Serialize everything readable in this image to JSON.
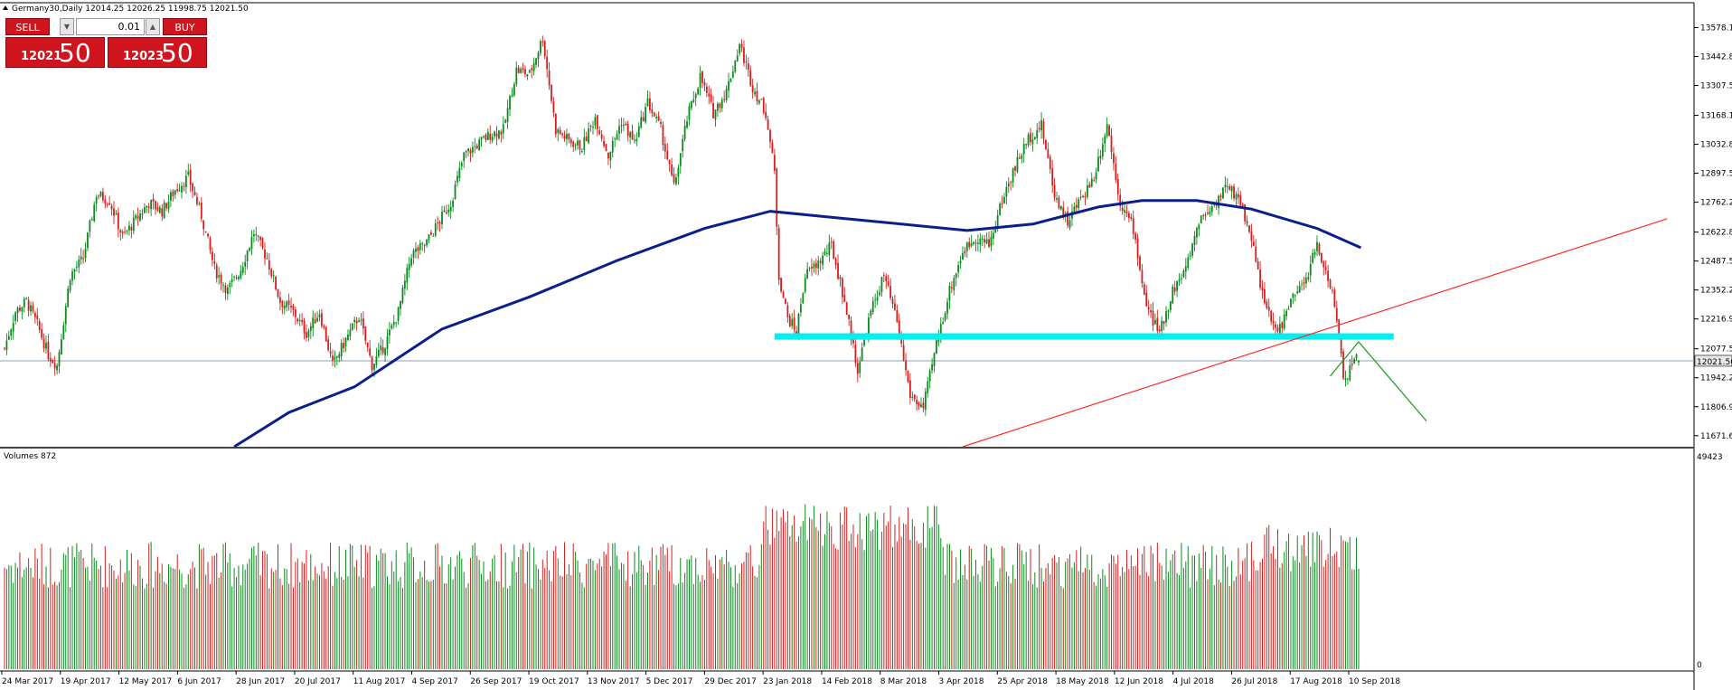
{
  "window": {
    "symbol_line": "Germany30,Daily  12014.25 12026.25 11998.75 12021.50",
    "current_price_label": "12021.50"
  },
  "trade_panel": {
    "sell_label": "SELL",
    "buy_label": "BUY",
    "lot_value": "0.01",
    "spin_down": "▼",
    "spin_up": "▲",
    "bid_small": "12021",
    "bid_big": "50",
    "ask_small": "12023",
    "ask_big": "50"
  },
  "colors": {
    "bull": "#0b8a1e",
    "bear": "#d41f1f",
    "moving_average": "#0c1e8c",
    "support_zone": "#00f0f0",
    "trend_line": "#ff2a2a",
    "projection": "#1a9a1a",
    "axis": "#000000"
  },
  "chart_data": {
    "type": "candlestick",
    "instrument": "Germany30",
    "timeframe": "Daily",
    "ohlc_last": {
      "open": 12014.25,
      "high": 12026.25,
      "low": 11998.75,
      "close": 12021.5
    },
    "price_axis_ticks": [
      "13578.10",
      "13442.80",
      "13307.50",
      "13168.10",
      "13032.80",
      "12897.50",
      "12762.20",
      "12622.80",
      "12487.50",
      "12352.20",
      "12216.90",
      "12077.50",
      "11942.20",
      "11806.90",
      "11671.60"
    ],
    "date_axis_ticks": [
      "24 Mar 2017",
      "19 Apr 2017",
      "12 May 2017",
      "6 Jun 2017",
      "28 Jun 2017",
      "20 Jul 2017",
      "11 Aug 2017",
      "4 Sep 2017",
      "26 Sep 2017",
      "19 Oct 2017",
      "13 Nov 2017",
      "5 Dec 2017",
      "29 Dec 2017",
      "23 Jan 2018",
      "14 Feb 2018",
      "8 Mar 2018",
      "3 Apr 2018",
      "25 Apr 2018",
      "18 May 2018",
      "12 Jun 2018",
      "4 Jul 2018",
      "26 Jul 2018",
      "17 Aug 2018",
      "10 Sep 2018"
    ],
    "price_ylim": [
      11620,
      13690
    ],
    "price_path": [
      [
        0,
        12080
      ],
      [
        5,
        12250
      ],
      [
        10,
        12300
      ],
      [
        15,
        12190
      ],
      [
        20,
        12050
      ],
      [
        24,
        12000
      ],
      [
        30,
        12420
      ],
      [
        36,
        12500
      ],
      [
        42,
        12800
      ],
      [
        48,
        12770
      ],
      [
        54,
        12600
      ],
      [
        60,
        12680
      ],
      [
        66,
        12760
      ],
      [
        72,
        12720
      ],
      [
        78,
        12820
      ],
      [
        84,
        12880
      ],
      [
        90,
        12700
      ],
      [
        96,
        12450
      ],
      [
        102,
        12350
      ],
      [
        108,
        12450
      ],
      [
        114,
        12620
      ],
      [
        120,
        12500
      ],
      [
        126,
        12300
      ],
      [
        132,
        12250
      ],
      [
        138,
        12150
      ],
      [
        144,
        12250
      ],
      [
        150,
        12000
      ],
      [
        156,
        12120
      ],
      [
        162,
        12230
      ],
      [
        168,
        12000
      ],
      [
        174,
        12100
      ],
      [
        180,
        12250
      ],
      [
        186,
        12520
      ],
      [
        192,
        12560
      ],
      [
        198,
        12660
      ],
      [
        204,
        12760
      ],
      [
        210,
        12980
      ],
      [
        216,
        13030
      ],
      [
        222,
        13080
      ],
      [
        228,
        13100
      ],
      [
        234,
        13380
      ],
      [
        240,
        13360
      ],
      [
        246,
        13530
      ],
      [
        252,
        13100
      ],
      [
        258,
        13050
      ],
      [
        264,
        13020
      ],
      [
        270,
        13160
      ],
      [
        276,
        12980
      ],
      [
        282,
        13140
      ],
      [
        288,
        13040
      ],
      [
        294,
        13230
      ],
      [
        300,
        13100
      ],
      [
        306,
        12830
      ],
      [
        312,
        13150
      ],
      [
        318,
        13350
      ],
      [
        324,
        13180
      ],
      [
        330,
        13280
      ],
      [
        336,
        13500
      ],
      [
        342,
        13300
      ],
      [
        348,
        13180
      ],
      [
        352,
        12900
      ],
      [
        354,
        12420
      ],
      [
        358,
        12220
      ],
      [
        362,
        12160
      ],
      [
        366,
        12420
      ],
      [
        372,
        12480
      ],
      [
        378,
        12560
      ],
      [
        384,
        12300
      ],
      [
        390,
        11980
      ],
      [
        396,
        12250
      ],
      [
        402,
        12420
      ],
      [
        408,
        12200
      ],
      [
        414,
        11860
      ],
      [
        420,
        11800
      ],
      [
        426,
        12100
      ],
      [
        432,
        12350
      ],
      [
        438,
        12530
      ],
      [
        444,
        12600
      ],
      [
        450,
        12560
      ],
      [
        456,
        12770
      ],
      [
        462,
        12930
      ],
      [
        468,
        13060
      ],
      [
        474,
        13120
      ],
      [
        480,
        12800
      ],
      [
        486,
        12670
      ],
      [
        492,
        12780
      ],
      [
        498,
        12880
      ],
      [
        504,
        13130
      ],
      [
        510,
        12760
      ],
      [
        516,
        12640
      ],
      [
        522,
        12270
      ],
      [
        528,
        12150
      ],
      [
        534,
        12350
      ],
      [
        540,
        12450
      ],
      [
        546,
        12680
      ],
      [
        552,
        12740
      ],
      [
        558,
        12830
      ],
      [
        564,
        12790
      ],
      [
        570,
        12600
      ],
      [
        576,
        12280
      ],
      [
        582,
        12150
      ],
      [
        588,
        12300
      ],
      [
        594,
        12380
      ],
      [
        600,
        12560
      ],
      [
        606,
        12380
      ],
      [
        610,
        12150
      ],
      [
        612,
        11950
      ],
      [
        614,
        11960
      ],
      [
        617,
        12040
      ],
      [
        619,
        12021.5
      ]
    ],
    "moving_average": [
      [
        105,
        11620
      ],
      [
        130,
        11780
      ],
      [
        160,
        11900
      ],
      [
        200,
        12170
      ],
      [
        240,
        12320
      ],
      [
        280,
        12490
      ],
      [
        320,
        12640
      ],
      [
        350,
        12720
      ],
      [
        380,
        12690
      ],
      [
        410,
        12660
      ],
      [
        440,
        12630
      ],
      [
        470,
        12660
      ],
      [
        500,
        12740
      ],
      [
        520,
        12770
      ],
      [
        545,
        12770
      ],
      [
        570,
        12730
      ],
      [
        600,
        12640
      ],
      [
        620,
        12550
      ]
    ],
    "support_zone": {
      "from": 352,
      "to": 635,
      "low": 12120,
      "high": 12150
    },
    "trend_line": {
      "from": [
        438,
        11620
      ],
      "to": [
        760,
        12685
      ]
    },
    "projection": [
      [
        606,
        11950
      ],
      [
        619,
        12110
      ],
      [
        650,
        11740
      ]
    ],
    "current_price": 12021.5,
    "volume_title": "Volumes 872",
    "volume_axis_ticks": [
      "49423",
      "0"
    ],
    "volume_max": 49423
  }
}
